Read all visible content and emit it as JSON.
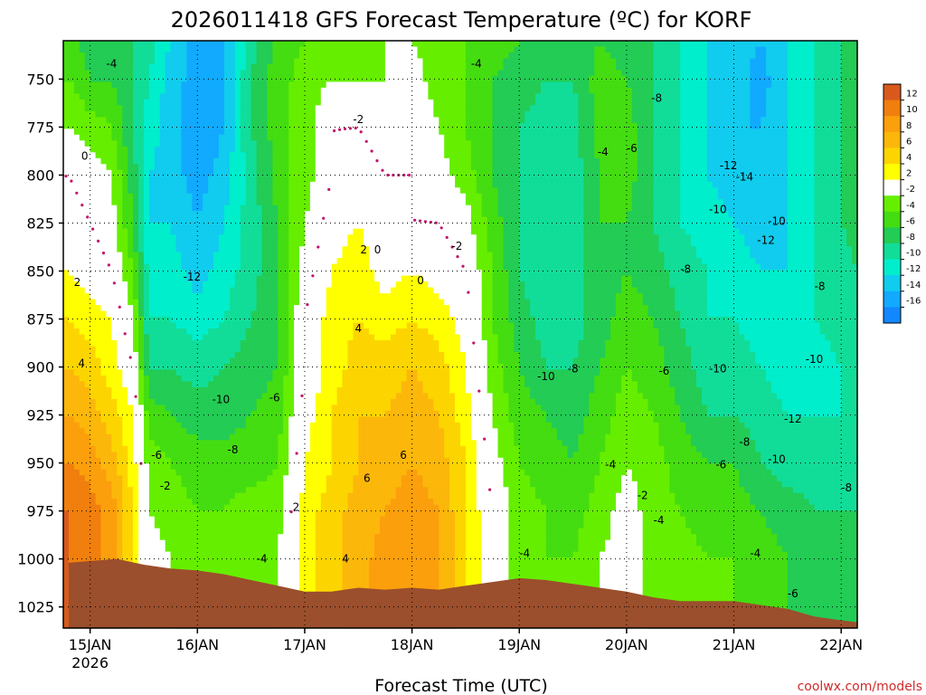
{
  "chart_data": {
    "type": "heatmap",
    "title": "2026011418 GFS Forecast Temperature (ºC) for KORF",
    "xlabel": "Forecast Time (UTC)",
    "ylabel": "",
    "credit": "coolwx.com/models",
    "x_ticks": [
      "15JAN",
      "16JAN",
      "17JAN",
      "18JAN",
      "19JAN",
      "20JAN",
      "21JAN",
      "22JAN"
    ],
    "x_year": "2026",
    "x_range_days": [
      14.75,
      22.15
    ],
    "y_ticks": [
      750,
      775,
      800,
      825,
      850,
      875,
      900,
      925,
      950,
      975,
      1000,
      1025
    ],
    "y_range_hpa": [
      730,
      1036
    ],
    "colorbar": {
      "labels": [
        12,
        10,
        8,
        6,
        4,
        2,
        -2,
        -4,
        -6,
        -8,
        -10,
        -12,
        -14,
        -16
      ],
      "bins": [
        {
          "lo": 12,
          "hi": 14,
          "color": "#d9591c"
        },
        {
          "lo": 10,
          "hi": 12,
          "color": "#f07f0d"
        },
        {
          "lo": 8,
          "hi": 10,
          "color": "#fb9f0c"
        },
        {
          "lo": 6,
          "hi": 8,
          "color": "#fcb70b"
        },
        {
          "lo": 4,
          "hi": 6,
          "color": "#fcd500"
        },
        {
          "lo": 2,
          "hi": 4,
          "color": "#ffff00"
        },
        {
          "lo": -2,
          "hi": 2,
          "color": "#ffffff"
        },
        {
          "lo": -4,
          "hi": -2,
          "color": "#66ee00"
        },
        {
          "lo": -6,
          "hi": -4,
          "color": "#44dd11"
        },
        {
          "lo": -8,
          "hi": -6,
          "color": "#22cc55"
        },
        {
          "lo": -10,
          "hi": -8,
          "color": "#11dd99"
        },
        {
          "lo": -12,
          "hi": -10,
          "color": "#00eecc"
        },
        {
          "lo": -14,
          "hi": -12,
          "color": "#11ccee"
        },
        {
          "lo": -16,
          "hi": -14,
          "color": "#11aaff"
        },
        {
          "lo": -18,
          "hi": -16,
          "color": "#1188ff"
        }
      ]
    },
    "ground_color": "#9b4f2c",
    "freezing_line_color": "#c0166b",
    "grid": "dotted",
    "legend": "right colorbar",
    "series": [
      {
        "x": [
          14.8,
          15.25,
          15.5,
          15.75,
          16.0,
          16.25,
          16.5,
          16.75,
          17.0,
          17.25,
          17.5,
          17.75,
          18.0,
          18.25,
          18.5,
          18.75,
          19.0,
          19.25,
          19.5,
          19.75,
          20.0,
          20.25,
          20.5,
          20.75,
          21.0,
          21.25,
          21.5,
          21.75,
          22.0,
          22.15
        ],
        "surface_hpa": [
          1002,
          1000,
          1003,
          1005,
          1006,
          1008,
          1011,
          1014,
          1017,
          1017,
          1015,
          1016,
          1015,
          1016,
          1014,
          1012,
          1010,
          1011,
          1013,
          1015,
          1017,
          1020,
          1022,
          1022,
          1022,
          1024,
          1026,
          1030,
          1032,
          1033
        ]
      }
    ],
    "profiles": [
      {
        "t": 14.8,
        "temps": [
          -5,
          -4,
          -2,
          0,
          1,
          2,
          4,
          6,
          8,
          10,
          12,
          12,
          12
        ]
      },
      {
        "t": 15.0,
        "temps": [
          -7,
          -6,
          -3,
          -1,
          0,
          1,
          3,
          5,
          7,
          9,
          11,
          11,
          11
        ]
      },
      {
        "t": 15.2,
        "temps": [
          -7,
          -6,
          -4,
          -2,
          -1,
          0,
          2,
          3,
          5,
          7,
          9,
          9,
          9
        ]
      },
      {
        "t": 15.4,
        "temps": [
          -8,
          -8,
          -8,
          -7,
          -6,
          -4,
          -2,
          0,
          2,
          3,
          4,
          4,
          4
        ]
      },
      {
        "t": 15.55,
        "temps": [
          -9,
          -10,
          -11,
          -12,
          -12,
          -11,
          -10,
          -8,
          -5,
          -3,
          -2,
          -1,
          -1
        ]
      },
      {
        "t": 15.75,
        "temps": [
          -12,
          -13,
          -13,
          -13,
          -12,
          -11,
          -10,
          -8,
          -6,
          -4,
          -3,
          -2,
          -2
        ]
      },
      {
        "t": 16.0,
        "temps": [
          -15,
          -15,
          -16,
          -15,
          -14,
          -13,
          -11,
          -9,
          -7,
          -5,
          -4,
          -4,
          -4
        ]
      },
      {
        "t": 16.25,
        "temps": [
          -14,
          -14,
          -14,
          -13,
          -12,
          -11,
          -10,
          -8,
          -7,
          -5,
          -4,
          -4,
          -4
        ]
      },
      {
        "t": 16.5,
        "temps": [
          -9,
          -8,
          -8,
          -9,
          -9,
          -9,
          -8,
          -7,
          -6,
          -5,
          -3,
          -3,
          -3
        ]
      },
      {
        "t": 16.75,
        "temps": [
          -5,
          -5,
          -5,
          -5,
          -6,
          -6,
          -6,
          -6,
          -5,
          -4,
          -3,
          -2,
          -2
        ]
      },
      {
        "t": 17.0,
        "temps": [
          -4,
          -3,
          -3,
          -3,
          -2,
          -1,
          0,
          0,
          1,
          2,
          3,
          3,
          3
        ]
      },
      {
        "t": 17.25,
        "temps": [
          -3,
          -2,
          0,
          0,
          1,
          2,
          3,
          3,
          4,
          4,
          5,
          5,
          5
        ]
      },
      {
        "t": 17.5,
        "temps": [
          -3,
          -2,
          0,
          1,
          2,
          3,
          4,
          5,
          6,
          6,
          7,
          7,
          7
        ]
      },
      {
        "t": 17.75,
        "temps": [
          -2,
          -2,
          -1,
          0,
          1,
          1,
          3,
          5,
          6,
          7,
          8,
          9,
          9
        ]
      },
      {
        "t": 18.0,
        "temps": [
          -2,
          -1,
          0,
          0,
          0,
          2,
          4,
          6,
          7,
          8,
          9,
          10,
          10
        ]
      },
      {
        "t": 18.25,
        "temps": [
          -3,
          -3,
          -2,
          -1,
          0,
          1,
          3,
          5,
          6,
          7,
          8,
          8,
          8
        ]
      },
      {
        "t": 18.5,
        "temps": [
          -4,
          -4,
          -4,
          -3,
          -1,
          0,
          1,
          2,
          3,
          4,
          4,
          4,
          4
        ]
      },
      {
        "t": 18.75,
        "temps": [
          -5,
          -6,
          -6,
          -6,
          -5,
          -4,
          -4,
          -3,
          -2,
          -1,
          0,
          0,
          0
        ]
      },
      {
        "t": 19.0,
        "temps": [
          -6,
          -7,
          -8,
          -8,
          -8,
          -8,
          -7,
          -6,
          -5,
          -4,
          -3,
          -3,
          -3
        ]
      },
      {
        "t": 19.25,
        "temps": [
          -8,
          -8,
          -9,
          -10,
          -10,
          -10,
          -9,
          -8,
          -6,
          -5,
          -4,
          -4,
          -4
        ]
      },
      {
        "t": 19.5,
        "temps": [
          -8,
          -8,
          -9,
          -9,
          -9,
          -9,
          -9,
          -8,
          -7,
          -6,
          -5,
          -4,
          -4
        ]
      },
      {
        "t": 19.75,
        "temps": [
          -6,
          -5,
          -5,
          -6,
          -6,
          -7,
          -7,
          -6,
          -5,
          -4,
          -3,
          -2,
          -2
        ]
      },
      {
        "t": 20.0,
        "temps": [
          -7,
          -6,
          -5,
          -5,
          -6,
          -6,
          -5,
          -4,
          -3,
          -2,
          -1,
          -1,
          -1
        ]
      },
      {
        "t": 20.25,
        "temps": [
          -8,
          -8,
          -8,
          -8,
          -8,
          -7,
          -6,
          -5,
          -4,
          -3,
          -3,
          -3,
          -3
        ]
      },
      {
        "t": 20.5,
        "temps": [
          -10,
          -10,
          -10,
          -10,
          -10,
          -9,
          -8,
          -7,
          -6,
          -5,
          -4,
          -3,
          -3
        ]
      },
      {
        "t": 20.75,
        "temps": [
          -12,
          -12,
          -12,
          -12,
          -11,
          -10,
          -10,
          -9,
          -8,
          -6,
          -5,
          -4,
          -4
        ]
      },
      {
        "t": 21.0,
        "temps": [
          -13,
          -13,
          -14,
          -13,
          -12,
          -11,
          -10,
          -9,
          -8,
          -6,
          -5,
          -4,
          -4
        ]
      },
      {
        "t": 21.25,
        "temps": [
          -14,
          -15,
          -14,
          -13,
          -13,
          -12,
          -11,
          -10,
          -9,
          -8,
          -6,
          -5,
          -5
        ]
      },
      {
        "t": 21.5,
        "temps": [
          -12,
          -12,
          -12,
          -12,
          -12,
          -12,
          -11,
          -11,
          -10,
          -9,
          -7,
          -6,
          -6
        ]
      },
      {
        "t": 21.75,
        "temps": [
          -10,
          -10,
          -10,
          -10,
          -10,
          -10,
          -10,
          -11,
          -10,
          -9,
          -8,
          -7,
          -7
        ]
      },
      {
        "t": 22.0,
        "temps": [
          -8,
          -8,
          -8,
          -8,
          -8,
          -9,
          -9,
          -10,
          -10,
          -9,
          -8,
          -7,
          -7
        ]
      },
      {
        "t": 22.15,
        "temps": [
          -7,
          -7,
          -7,
          -7,
          -7,
          -8,
          -8,
          -9,
          -9,
          -9,
          -8,
          -7,
          -7
        ]
      }
    ],
    "profile_levels_hpa": [
      730,
      750,
      775,
      800,
      825,
      850,
      875,
      900,
      925,
      950,
      975,
      1000,
      1036
    ],
    "contour_labels": [
      {
        "text": "-4",
        "t": 15.2,
        "p": 742
      },
      {
        "text": "0",
        "t": 14.95,
        "p": 790
      },
      {
        "text": "2",
        "t": 14.88,
        "p": 856
      },
      {
        "text": "4",
        "t": 14.92,
        "p": 898
      },
      {
        "text": "-12",
        "t": 15.95,
        "p": 853
      },
      {
        "text": "-10",
        "t": 16.22,
        "p": 917
      },
      {
        "text": "-8",
        "t": 16.33,
        "p": 943
      },
      {
        "text": "-6",
        "t": 15.62,
        "p": 946
      },
      {
        "text": "-2",
        "t": 15.7,
        "p": 962
      },
      {
        "text": "-6",
        "t": 16.72,
        "p": 916
      },
      {
        "text": "-4",
        "t": 16.6,
        "p": 1000
      },
      {
        "text": "2",
        "t": 16.92,
        "p": 973
      },
      {
        "text": "4",
        "t": 17.38,
        "p": 1000
      },
      {
        "text": "4",
        "t": 17.5,
        "p": 880
      },
      {
        "text": "6",
        "t": 17.58,
        "p": 958
      },
      {
        "text": "6",
        "t": 17.92,
        "p": 946
      },
      {
        "text": "2",
        "t": 17.55,
        "p": 839
      },
      {
        "text": "0",
        "t": 17.68,
        "p": 839
      },
      {
        "text": "0",
        "t": 18.08,
        "p": 855
      },
      {
        "text": "-2",
        "t": 17.5,
        "p": 771
      },
      {
        "text": "-2",
        "t": 18.42,
        "p": 837
      },
      {
        "text": "-4",
        "t": 18.6,
        "p": 742
      },
      {
        "text": "-4",
        "t": 19.05,
        "p": 997
      },
      {
        "text": "-10",
        "t": 19.25,
        "p": 905
      },
      {
        "text": "-8",
        "t": 19.5,
        "p": 901
      },
      {
        "text": "-4",
        "t": 19.78,
        "p": 788
      },
      {
        "text": "-6",
        "t": 20.05,
        "p": 786
      },
      {
        "text": "-8",
        "t": 20.28,
        "p": 760
      },
      {
        "text": "-4",
        "t": 19.85,
        "p": 951
      },
      {
        "text": "-2",
        "t": 20.15,
        "p": 967
      },
      {
        "text": "-4",
        "t": 20.3,
        "p": 980
      },
      {
        "text": "-6",
        "t": 20.35,
        "p": 902
      },
      {
        "text": "-8",
        "t": 20.55,
        "p": 849
      },
      {
        "text": "-10",
        "t": 20.85,
        "p": 818
      },
      {
        "text": "-12",
        "t": 20.95,
        "p": 795
      },
      {
        "text": "-14",
        "t": 21.1,
        "p": 801
      },
      {
        "text": "-10",
        "t": 20.85,
        "p": 901
      },
      {
        "text": "-8",
        "t": 21.1,
        "p": 939
      },
      {
        "text": "-6",
        "t": 20.88,
        "p": 951
      },
      {
        "text": "-4",
        "t": 21.2,
        "p": 997
      },
      {
        "text": "-10",
        "t": 21.4,
        "p": 824
      },
      {
        "text": "-12",
        "t": 21.3,
        "p": 834
      },
      {
        "text": "-8",
        "t": 21.8,
        "p": 858
      },
      {
        "text": "-10",
        "t": 21.75,
        "p": 896
      },
      {
        "text": "-12",
        "t": 21.55,
        "p": 927
      },
      {
        "text": "-10",
        "t": 21.4,
        "p": 948
      },
      {
        "text": "-8",
        "t": 22.05,
        "p": 963
      },
      {
        "text": "-6",
        "t": 21.55,
        "p": 1018
      }
    ]
  }
}
